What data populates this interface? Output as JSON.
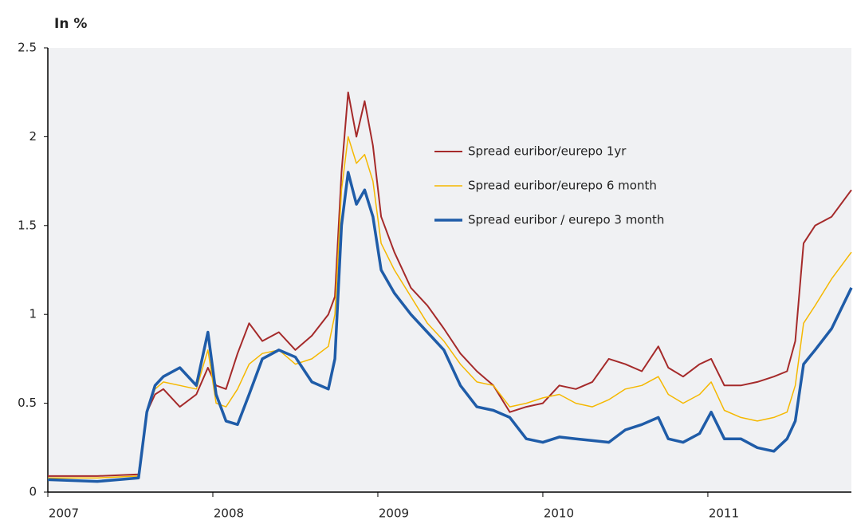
{
  "chart_data": {
    "type": "line",
    "title": "In %",
    "x": [
      2007,
      2007.3,
      2007.55,
      2007.6,
      2007.65,
      2007.7,
      2007.8,
      2007.9,
      2007.97,
      2008.02,
      2008.08,
      2008.15,
      2008.22,
      2008.3,
      2008.4,
      2008.5,
      2008.6,
      2008.7,
      2008.74,
      2008.78,
      2008.82,
      2008.87,
      2008.92,
      2008.97,
      2009.02,
      2009.1,
      2009.2,
      2009.3,
      2009.4,
      2009.5,
      2009.6,
      2009.7,
      2009.8,
      2009.9,
      2010.0,
      2010.1,
      2010.2,
      2010.3,
      2010.4,
      2010.5,
      2010.6,
      2010.7,
      2010.76,
      2010.85,
      2010.95,
      2011.02,
      2011.1,
      2011.2,
      2011.3,
      2011.4,
      2011.48,
      2011.53,
      2011.58,
      2011.65,
      2011.75,
      2011.87
    ],
    "series": [
      {
        "name": "Spread euribor/eurepo 1yr",
        "color": "#a52a2a",
        "width": 2,
        "values": [
          0.09,
          0.09,
          0.1,
          0.45,
          0.55,
          0.58,
          0.48,
          0.55,
          0.7,
          0.6,
          0.58,
          0.78,
          0.95,
          0.85,
          0.9,
          0.8,
          0.88,
          1.0,
          1.1,
          1.8,
          2.25,
          2.0,
          2.2,
          1.95,
          1.55,
          1.35,
          1.15,
          1.05,
          0.92,
          0.78,
          0.68,
          0.6,
          0.45,
          0.48,
          0.5,
          0.6,
          0.58,
          0.62,
          0.75,
          0.72,
          0.68,
          0.82,
          0.7,
          0.65,
          0.72,
          0.75,
          0.6,
          0.6,
          0.62,
          0.65,
          0.68,
          0.85,
          1.4,
          1.5,
          1.55,
          1.7
        ]
      },
      {
        "name": "Spread euribor/eurepo 6 month",
        "color": "#f5b800",
        "width": 1.5,
        "values": [
          0.08,
          0.08,
          0.09,
          0.45,
          0.58,
          0.62,
          0.6,
          0.58,
          0.8,
          0.5,
          0.48,
          0.58,
          0.72,
          0.78,
          0.8,
          0.72,
          0.75,
          0.82,
          1.0,
          1.7,
          2.0,
          1.85,
          1.9,
          1.75,
          1.4,
          1.25,
          1.1,
          0.95,
          0.85,
          0.72,
          0.62,
          0.6,
          0.48,
          0.5,
          0.53,
          0.55,
          0.5,
          0.48,
          0.52,
          0.58,
          0.6,
          0.65,
          0.55,
          0.5,
          0.55,
          0.62,
          0.46,
          0.42,
          0.4,
          0.42,
          0.45,
          0.6,
          0.95,
          1.05,
          1.2,
          1.35
        ]
      },
      {
        "name": "Spread euribor / eurepo 3 month",
        "color": "#1f5ca8",
        "width": 3.5,
        "values": [
          0.07,
          0.06,
          0.08,
          0.45,
          0.6,
          0.65,
          0.7,
          0.6,
          0.9,
          0.55,
          0.4,
          0.38,
          0.55,
          0.75,
          0.8,
          0.76,
          0.62,
          0.58,
          0.75,
          1.5,
          1.8,
          1.62,
          1.7,
          1.55,
          1.25,
          1.12,
          1.0,
          0.9,
          0.8,
          0.6,
          0.48,
          0.46,
          0.42,
          0.3,
          0.28,
          0.31,
          0.3,
          0.29,
          0.28,
          0.35,
          0.38,
          0.42,
          0.3,
          0.28,
          0.33,
          0.45,
          0.3,
          0.3,
          0.25,
          0.23,
          0.3,
          0.4,
          0.72,
          0.8,
          0.92,
          1.15
        ]
      }
    ],
    "xlim": [
      2007,
      2011.87
    ],
    "xticks": [
      2007,
      2008,
      2009,
      2010,
      2011
    ],
    "ylim": [
      0,
      2.5
    ],
    "yticks": [
      0,
      0.5,
      1,
      1.5,
      2,
      2.5
    ],
    "legend": "inside-top"
  }
}
